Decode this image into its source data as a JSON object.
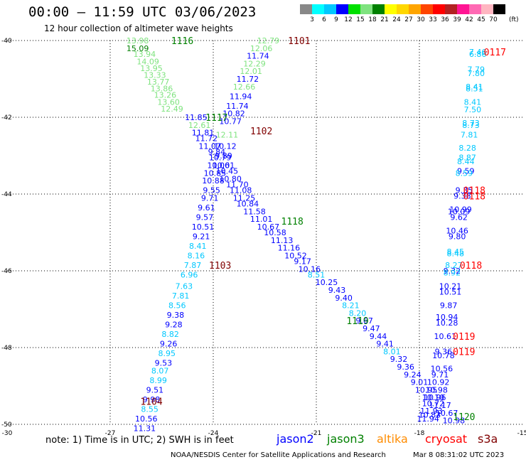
{
  "header": {
    "title": "00:00 – 11:59 UTC 03/06/2023",
    "subtitle": "12 hour collection of altimeter wave heights"
  },
  "legend": {
    "levels": [
      "3",
      "6",
      "9",
      "12",
      "15",
      "18",
      "21",
      "24",
      "27",
      "30",
      "33",
      "36",
      "39",
      "42",
      "45",
      "70"
    ],
    "colors": [
      "#888888",
      "#00ffff",
      "#00c8ff",
      "#0000ff",
      "#00e000",
      "#7fe37f",
      "#008000",
      "#ffff00",
      "#ffd700",
      "#ffa500",
      "#ff4500",
      "#ff0000",
      "#b22222",
      "#ff1493",
      "#ff69b4",
      "#ffb6c1",
      "#000000"
    ],
    "unit": "(ft)"
  },
  "footer": {
    "note": "note:  1) Time is in UTC; 2) SWH is in feet",
    "satellites": [
      {
        "name": "jason2",
        "color": "#0000ff"
      },
      {
        "name": "jason3",
        "color": "#008000"
      },
      {
        "name": "altika",
        "color": "#ff8c00"
      },
      {
        "name": "cryosat",
        "color": "#ff0000"
      },
      {
        "name": "s3a",
        "color": "#800000"
      }
    ],
    "credit": "NOAA/NESDIS Center for Satellite Applications and Research",
    "timestamp": "Mar  8 08:31:02 UTC 2023"
  },
  "chart_data": {
    "type": "scatter",
    "xlim": [
      -30,
      -15
    ],
    "ylim": [
      -50,
      -40
    ],
    "xticks": [
      "-30",
      "-27",
      "-24",
      "-21",
      "-18",
      "-15"
    ],
    "yticks": [
      "-40",
      "-42",
      "-44",
      "-46",
      "-48",
      "-50"
    ],
    "time_labels": [
      {
        "text": "1116",
        "lon": -24.9,
        "lat": -40.0,
        "color": "#008000"
      },
      {
        "text": "1101",
        "lon": -21.5,
        "lat": -40.0,
        "color": "#800000"
      },
      {
        "text": "0117",
        "lon": -15.8,
        "lat": -40.3,
        "color": "#ff0000"
      },
      {
        "text": "1117",
        "lon": -23.9,
        "lat": -42.0,
        "color": "#008000"
      },
      {
        "text": "1102",
        "lon": -22.6,
        "lat": -42.35,
        "color": "#800000"
      },
      {
        "text": "0118",
        "lon": -16.4,
        "lat": -43.9,
        "color": "#ff0000"
      },
      {
        "text": "0118",
        "lon": -16.4,
        "lat": -44.05,
        "color": "#ff0000"
      },
      {
        "text": "1118",
        "lon": -21.7,
        "lat": -44.7,
        "color": "#008000"
      },
      {
        "text": "1103",
        "lon": -23.8,
        "lat": -45.85,
        "color": "#800000"
      },
      {
        "text": "0118",
        "lon": -16.5,
        "lat": -45.85,
        "color": "#ff0000"
      },
      {
        "text": "1119",
        "lon": -19.8,
        "lat": -47.3,
        "color": "#008000"
      },
      {
        "text": "0119",
        "lon": -16.7,
        "lat": -47.7,
        "color": "#ff0000"
      },
      {
        "text": "0119",
        "lon": -16.7,
        "lat": -48.1,
        "color": "#ff0000"
      },
      {
        "text": "1104",
        "lon": -25.8,
        "lat": -49.4,
        "color": "#800000"
      },
      {
        "text": "1120",
        "lon": -16.7,
        "lat": -49.8,
        "color": "#008000"
      }
    ],
    "tracks": [
      {
        "name": "track-jason3-descending",
        "points": [
          [
            -26.2,
            -40.0,
            "13.98",
            "#7fe37f"
          ],
          [
            -26.2,
            -40.2,
            "15.09",
            "#008000"
          ],
          [
            -26.0,
            -40.35,
            "13.94",
            "#7fe37f"
          ],
          [
            -25.9,
            -40.55,
            "14.09",
            "#7fe37f"
          ],
          [
            -25.8,
            -40.72,
            "13.95",
            "#7fe37f"
          ],
          [
            -25.7,
            -40.9,
            "13.33",
            "#7fe37f"
          ],
          [
            -25.6,
            -41.07,
            "13.77",
            "#7fe37f"
          ],
          [
            -25.5,
            -41.25,
            "13.86",
            "#7fe37f"
          ],
          [
            -25.4,
            -41.42,
            "13.26",
            "#7fe37f"
          ],
          [
            -25.3,
            -41.6,
            "13.60",
            "#7fe37f"
          ],
          [
            -25.2,
            -41.78,
            "12.49",
            "#7fe37f"
          ],
          [
            -24.5,
            -42.0,
            "11.85",
            "#0000ff"
          ],
          [
            -24.4,
            -42.2,
            "12.61",
            "#7fe37f"
          ],
          [
            -24.3,
            -42.4,
            "11.81",
            "#0000ff"
          ],
          [
            -24.2,
            -42.55,
            "11.72",
            "#0000ff"
          ],
          [
            -24.1,
            -42.75,
            "11.07",
            "#0000ff"
          ],
          [
            -23.9,
            -42.9,
            "9.84",
            "#0000ff"
          ],
          [
            -23.8,
            -43.05,
            "10.79",
            "#0000ff"
          ],
          [
            -23.7,
            -43.25,
            "10.01",
            "#0000ff"
          ],
          [
            -23.6,
            -43.4,
            "10.45",
            "#0000ff"
          ],
          [
            -23.5,
            -43.6,
            "10.80",
            "#0000ff"
          ],
          [
            -23.3,
            -43.75,
            "11.70",
            "#0000ff"
          ],
          [
            -23.2,
            -43.9,
            "11.08",
            "#0000ff"
          ],
          [
            -23.1,
            -44.1,
            "11.25",
            "#0000ff"
          ],
          [
            -23.0,
            -44.25,
            "10.84",
            "#0000ff"
          ],
          [
            -22.8,
            -44.45,
            "11.58",
            "#0000ff"
          ],
          [
            -22.6,
            -44.65,
            "11.01",
            "#0000ff"
          ],
          [
            -22.4,
            -44.85,
            "10.67",
            "#0000ff"
          ],
          [
            -22.2,
            -45.0,
            "10.58",
            "#0000ff"
          ],
          [
            -22.0,
            -45.2,
            "11.13",
            "#0000ff"
          ],
          [
            -21.8,
            -45.4,
            "11.16",
            "#0000ff"
          ],
          [
            -21.6,
            -45.6,
            "10.52",
            "#0000ff"
          ],
          [
            -21.4,
            -45.75,
            "9.17",
            "#0000ff"
          ],
          [
            -21.2,
            -45.95,
            "10.16",
            "#0000ff"
          ],
          [
            -21.0,
            -46.1,
            "8.51",
            "#00c8ff"
          ],
          [
            -20.7,
            -46.3,
            "10.25",
            "#0000ff"
          ],
          [
            -20.4,
            -46.5,
            "9.43",
            "#0000ff"
          ],
          [
            -20.2,
            -46.7,
            "9.40",
            "#0000ff"
          ],
          [
            -20.0,
            -46.9,
            "8.21",
            "#00c8ff"
          ],
          [
            -19.8,
            -47.1,
            "8.20",
            "#00c8ff"
          ],
          [
            -19.6,
            -47.3,
            "9.67",
            "#0000ff"
          ],
          [
            -19.4,
            -47.5,
            "9.47",
            "#0000ff"
          ],
          [
            -19.2,
            -47.7,
            "9.44",
            "#0000ff"
          ],
          [
            -19.0,
            -47.9,
            "9.41",
            "#0000ff"
          ],
          [
            -18.8,
            -48.1,
            "8.01",
            "#00c8ff"
          ],
          [
            -18.6,
            -48.3,
            "9.32",
            "#0000ff"
          ],
          [
            -18.4,
            -48.5,
            "9.36",
            "#0000ff"
          ],
          [
            -18.2,
            -48.7,
            "9.24",
            "#0000ff"
          ],
          [
            -18.0,
            -48.9,
            "9.01",
            "#0000ff"
          ],
          [
            -17.8,
            -49.1,
            "10.95",
            "#0000ff"
          ],
          [
            -17.6,
            -49.3,
            "10.10",
            "#0000ff"
          ],
          [
            -17.4,
            -49.5,
            "11.17",
            "#0000ff"
          ],
          [
            -17.2,
            -49.7,
            "10.67",
            "#0000ff"
          ],
          [
            -17.0,
            -49.9,
            "10.98",
            "#0000ff"
          ]
        ]
      },
      {
        "name": "track-jason2-ascending",
        "points": [
          [
            -22.4,
            -40.0,
            "12.79",
            "#7fe37f"
          ],
          [
            -22.6,
            -40.2,
            "12.06",
            "#7fe37f"
          ],
          [
            -22.7,
            -40.4,
            "11.74",
            "#0000ff"
          ],
          [
            -22.8,
            -40.6,
            "12.29",
            "#7fe37f"
          ],
          [
            -22.9,
            -40.8,
            "12.01",
            "#7fe37f"
          ],
          [
            -23.0,
            -41.0,
            "11.72",
            "#0000ff"
          ],
          [
            -23.1,
            -41.2,
            "12.66",
            "#7fe37f"
          ],
          [
            -23.2,
            -41.45,
            "11.94",
            "#0000ff"
          ],
          [
            -23.3,
            -41.7,
            "11.74",
            "#0000ff"
          ],
          [
            -23.4,
            -41.9,
            "10.82",
            "#0000ff"
          ],
          [
            -23.5,
            -42.1,
            "10.77",
            "#0000ff"
          ],
          [
            -23.6,
            -42.45,
            "12.11",
            "#7fe37f"
          ],
          [
            -23.65,
            -42.75,
            "10.12",
            "#0000ff"
          ],
          [
            -23.7,
            -43.0,
            "9.89",
            "#0000ff"
          ],
          [
            -23.85,
            -43.25,
            "10.06",
            "#0000ff"
          ],
          [
            -23.95,
            -43.45,
            "10.85",
            "#0000ff"
          ],
          [
            -24.0,
            -43.65,
            "10.88",
            "#0000ff"
          ],
          [
            -24.05,
            -43.9,
            "9.55",
            "#0000ff"
          ],
          [
            -24.1,
            -44.1,
            "9.71",
            "#0000ff"
          ],
          [
            -24.2,
            -44.35,
            "9.61",
            "#0000ff"
          ],
          [
            -24.25,
            -44.6,
            "9.57",
            "#0000ff"
          ],
          [
            -24.3,
            -44.85,
            "10.51",
            "#0000ff"
          ],
          [
            -24.35,
            -45.1,
            "9.21",
            "#0000ff"
          ],
          [
            -24.45,
            -45.35,
            "8.41",
            "#00c8ff"
          ],
          [
            -24.5,
            -45.6,
            "8.16",
            "#00c8ff"
          ],
          [
            -24.6,
            -45.85,
            "7.87",
            "#00c8ff"
          ],
          [
            -24.7,
            -46.1,
            "6.96",
            "#00c8ff"
          ],
          [
            -24.85,
            -46.4,
            "7.63",
            "#00c8ff"
          ],
          [
            -24.95,
            -46.65,
            "7.81",
            "#00c8ff"
          ],
          [
            -25.05,
            -46.9,
            "8.56",
            "#00c8ff"
          ],
          [
            -25.1,
            -47.15,
            "9.38",
            "#0000ff"
          ],
          [
            -25.15,
            -47.4,
            "9.28",
            "#0000ff"
          ],
          [
            -25.25,
            -47.65,
            "8.82",
            "#00c8ff"
          ],
          [
            -25.3,
            -47.9,
            "9.26",
            "#0000ff"
          ],
          [
            -25.35,
            -48.15,
            "8.95",
            "#00c8ff"
          ],
          [
            -25.45,
            -48.4,
            "9.53",
            "#0000ff"
          ],
          [
            -25.55,
            -48.6,
            "8.07",
            "#00c8ff"
          ],
          [
            -25.6,
            -48.85,
            "8.99",
            "#00c8ff"
          ],
          [
            -25.7,
            -49.1,
            "9.51",
            "#0000ff"
          ],
          [
            -25.8,
            -49.35,
            "9.98",
            "#0000ff"
          ],
          [
            -25.85,
            -49.6,
            "8.55",
            "#00c8ff"
          ],
          [
            -25.95,
            -49.85,
            "10.56",
            "#0000ff"
          ],
          [
            -26.0,
            -50.1,
            "11.31",
            "#0000ff"
          ]
        ]
      },
      {
        "name": "track-cryosat",
        "points": [
          [
            -16.3,
            -40.3,
            "7.46",
            "#00c8ff"
          ],
          [
            -16.3,
            -40.35,
            "6.86",
            "#00c8ff"
          ],
          [
            -16.35,
            -40.75,
            "7.79",
            "#00c8ff"
          ],
          [
            -16.35,
            -40.85,
            "7.80",
            "#00c8ff"
          ],
          [
            -16.4,
            -41.2,
            "8.41",
            "#00c8ff"
          ],
          [
            -16.4,
            -41.25,
            "8.51",
            "#00c8ff"
          ],
          [
            -16.45,
            -41.6,
            "8.41",
            "#00c8ff"
          ],
          [
            -16.45,
            -41.8,
            "7.50",
            "#00c8ff"
          ],
          [
            -16.5,
            -42.15,
            "8.73",
            "#00c8ff"
          ],
          [
            -16.5,
            -42.2,
            "8.73",
            "#00c8ff"
          ],
          [
            -16.55,
            -42.45,
            "7.81",
            "#00c8ff"
          ],
          [
            -16.6,
            -42.8,
            "8.28",
            "#00c8ff"
          ],
          [
            -16.6,
            -43.05,
            "8.87",
            "#00c8ff"
          ],
          [
            -16.65,
            -43.15,
            "8.44",
            "#00c8ff"
          ],
          [
            -16.65,
            -43.4,
            "9.59",
            "#0000ff"
          ],
          [
            -16.7,
            -43.45,
            "8.59",
            "#00c8ff"
          ],
          [
            -16.7,
            -43.9,
            "9.35",
            "#0000ff"
          ],
          [
            -16.75,
            -44.05,
            "9.38",
            "#0000ff"
          ],
          [
            -16.8,
            -44.4,
            "10.99",
            "#0000ff"
          ],
          [
            -16.85,
            -44.45,
            "10.09",
            "#0000ff"
          ],
          [
            -16.85,
            -44.6,
            "9.62",
            "#0000ff"
          ],
          [
            -16.9,
            -44.95,
            "10.46",
            "#0000ff"
          ],
          [
            -16.9,
            -45.1,
            "9.80",
            "#0000ff"
          ],
          [
            -16.95,
            -45.5,
            "8.45",
            "#00c8ff"
          ],
          [
            -16.95,
            -45.55,
            "8.48",
            "#00c8ff"
          ],
          [
            -17.0,
            -45.85,
            "8.27",
            "#00c8ff"
          ],
          [
            -17.05,
            -46.0,
            "9.32",
            "#0000ff"
          ],
          [
            -17.05,
            -46.05,
            "8.92",
            "#00c8ff"
          ],
          [
            -17.1,
            -46.4,
            "10.21",
            "#0000ff"
          ],
          [
            -17.1,
            -46.55,
            "10.51",
            "#0000ff"
          ],
          [
            -17.15,
            -46.9,
            "9.87",
            "#0000ff"
          ],
          [
            -17.2,
            -47.2,
            "10.94",
            "#0000ff"
          ],
          [
            -17.2,
            -47.35,
            "10.28",
            "#0000ff"
          ],
          [
            -17.25,
            -47.7,
            "10.61",
            "#0000ff"
          ],
          [
            -17.3,
            -48.1,
            "9.36",
            "#0000ff"
          ],
          [
            -17.3,
            -48.2,
            "10.78",
            "#0000ff"
          ],
          [
            -17.35,
            -48.55,
            "10.56",
            "#0000ff"
          ],
          [
            -17.4,
            -48.7,
            "9.71",
            "#0000ff"
          ],
          [
            -17.45,
            -48.9,
            "10.92",
            "#0000ff"
          ],
          [
            -17.5,
            -49.1,
            "10.98",
            "#0000ff"
          ],
          [
            -17.55,
            -49.3,
            "10.96",
            "#0000ff"
          ],
          [
            -17.6,
            -49.45,
            "10.72",
            "#0000ff"
          ],
          [
            -17.65,
            -49.65,
            "11.93",
            "#0000ff"
          ],
          [
            -17.7,
            -49.75,
            "10.83",
            "#0000ff"
          ],
          [
            -17.75,
            -49.85,
            "11.94",
            "#0000ff"
          ]
        ]
      }
    ]
  }
}
